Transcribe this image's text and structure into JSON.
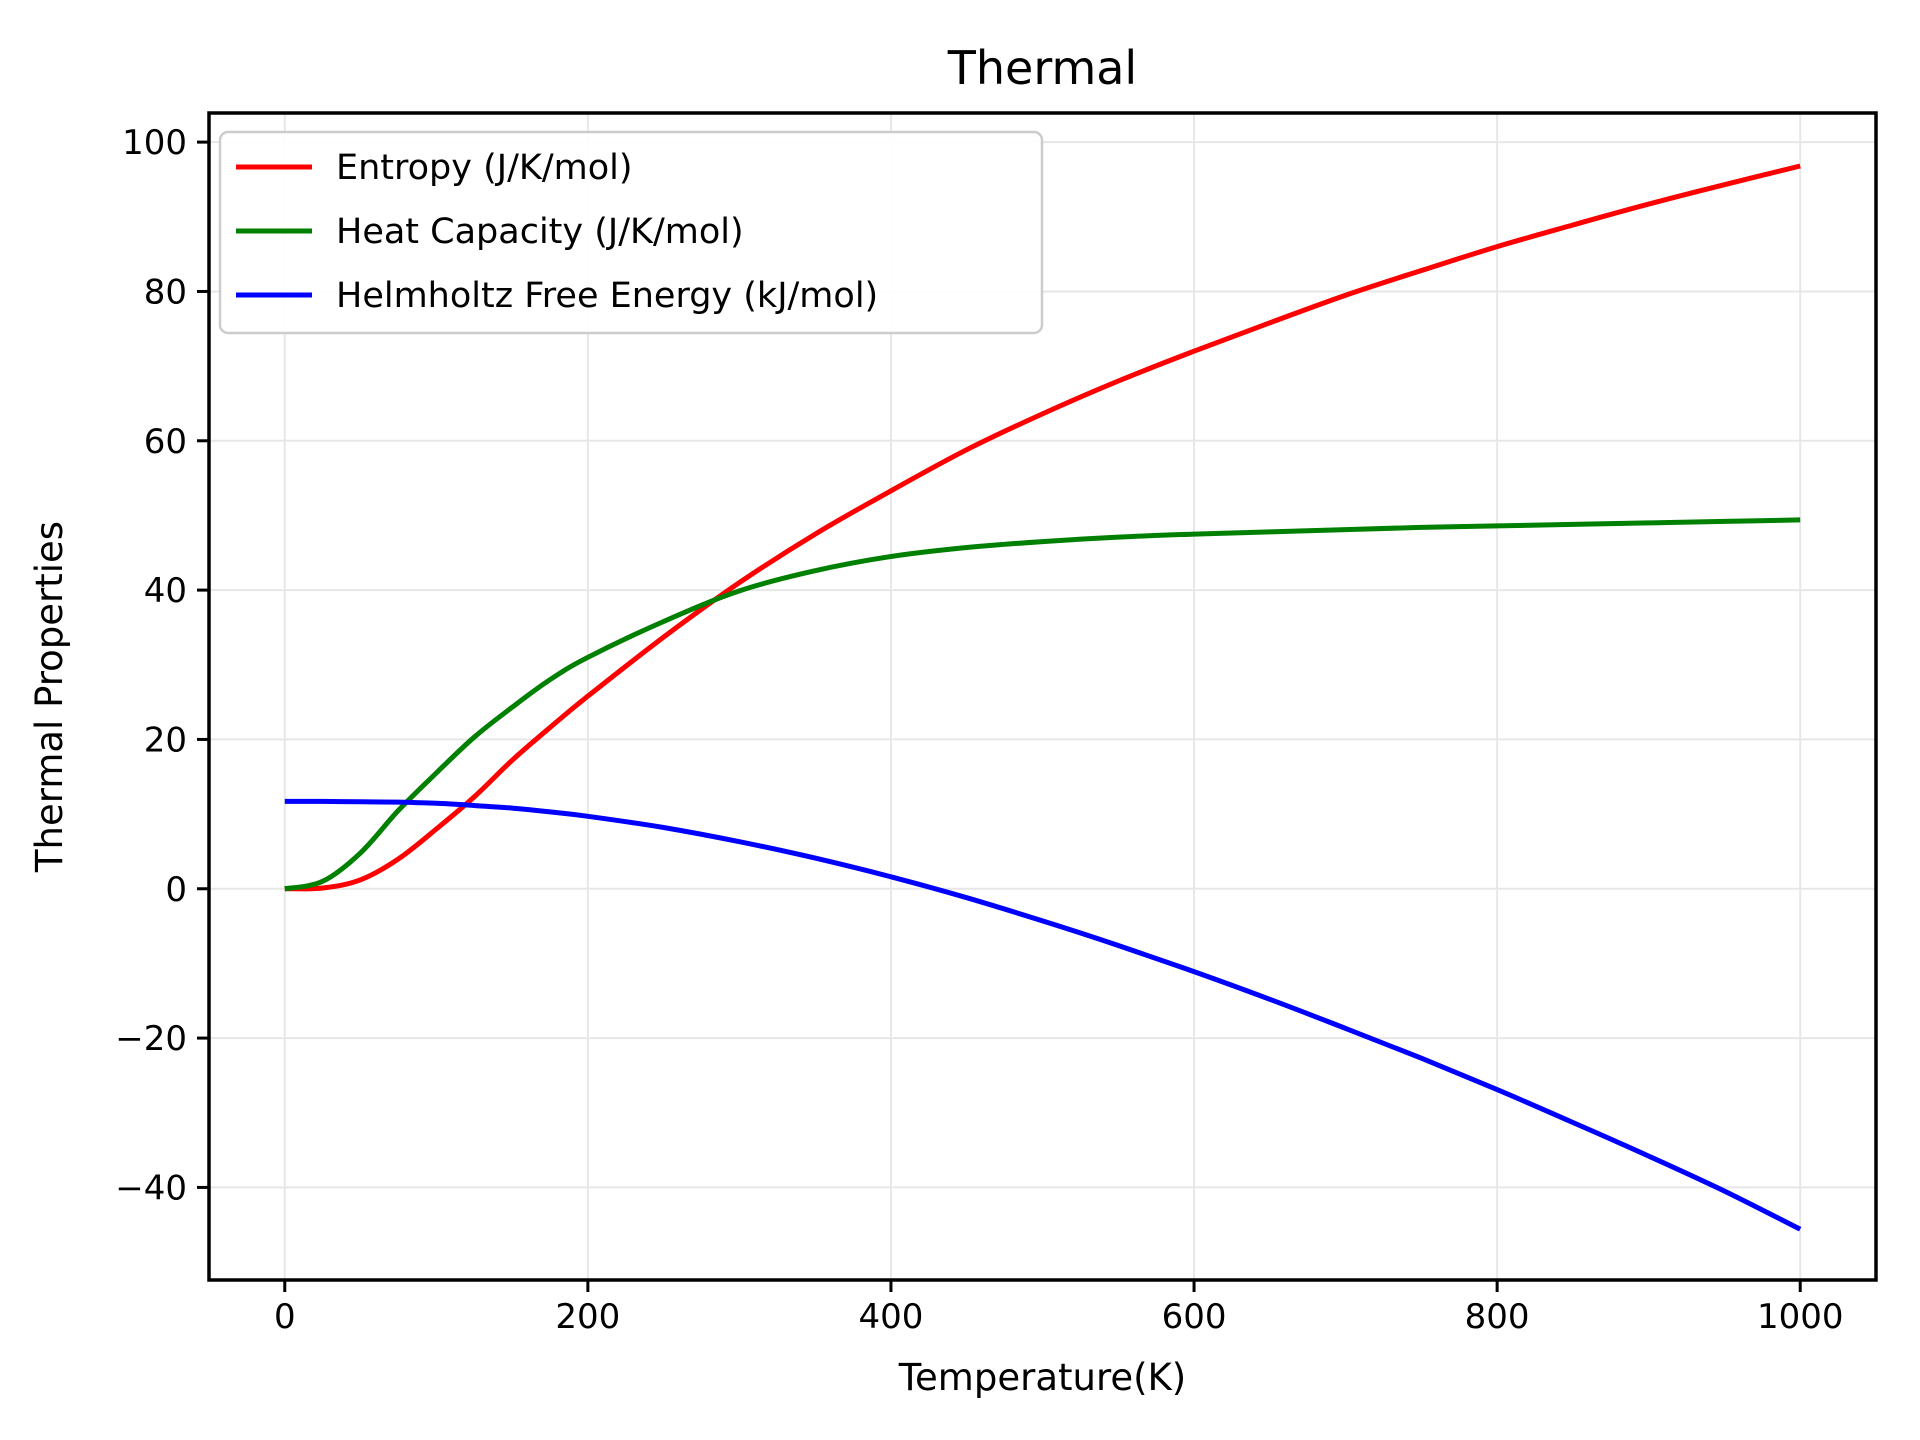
{
  "title": "Thermal",
  "axes": {
    "xlabel": "Temperature(K)",
    "ylabel": "Thermal Properties",
    "xlim": [
      -50,
      1050
    ],
    "ylim": [
      -52.4,
      103.9
    ],
    "xticks": {
      "values": [
        0,
        200,
        400,
        600,
        800,
        1000
      ],
      "labels": [
        "0",
        "200",
        "400",
        "600",
        "800",
        "1000"
      ]
    },
    "yticks": {
      "values": [
        -40,
        -20,
        0,
        20,
        40,
        60,
        80,
        100
      ],
      "labels": [
        "−40",
        "−20",
        "0",
        "20",
        "40",
        "60",
        "80",
        "100"
      ]
    },
    "grid_color": "#e7e7e7",
    "spine_color": "#000000"
  },
  "legend": {
    "position": "upper left",
    "border_color": "#cccccc",
    "entries": [
      {
        "label": "Entropy (J/K/mol)",
        "color": "#ff0000"
      },
      {
        "label": "Heat Capacity (J/K/mol)",
        "color": "#008000"
      },
      {
        "label": "Helmholtz Free Energy (kJ/mol)",
        "color": "#0000ff"
      }
    ]
  },
  "chart_data": {
    "type": "line",
    "title": "Thermal",
    "xlabel": "Temperature(K)",
    "ylabel": "Thermal Properties",
    "xlim": [
      -50,
      1050
    ],
    "ylim": [
      -52.4,
      103.9
    ],
    "grid": true,
    "legend_position": "upper left",
    "x": [
      0,
      25,
      50,
      75,
      100,
      125,
      150,
      175,
      200,
      250,
      300,
      350,
      400,
      450,
      500,
      550,
      600,
      650,
      700,
      750,
      800,
      850,
      900,
      950,
      1000
    ],
    "series": [
      {
        "name": "Entropy (J/K/mol)",
        "color": "#ff0000",
        "values": [
          0,
          0.1,
          1.2,
          4.0,
          8.0,
          12.3,
          17.2,
          21.6,
          25.8,
          33.7,
          41.0,
          47.5,
          53.3,
          58.8,
          63.6,
          68.0,
          72.0,
          75.8,
          79.5,
          82.8,
          86.0,
          88.9,
          91.7,
          94.3,
          96.8
        ]
      },
      {
        "name": "Heat Capacity (J/K/mol)",
        "color": "#008000",
        "values": [
          0,
          1.0,
          4.8,
          10.5,
          15.5,
          20.3,
          24.3,
          28.0,
          31.0,
          35.8,
          39.9,
          42.6,
          44.5,
          45.7,
          46.5,
          47.1,
          47.5,
          47.8,
          48.1,
          48.4,
          48.6,
          48.8,
          49.0,
          49.2,
          49.4
        ]
      },
      {
        "name": "Helmholtz Free Energy (kJ/mol)",
        "color": "#0000ff",
        "values": [
          11.7,
          11.7,
          11.65,
          11.6,
          11.45,
          11.15,
          10.8,
          10.3,
          9.7,
          8.2,
          6.3,
          4.1,
          1.6,
          -1.2,
          -4.3,
          -7.6,
          -11.1,
          -14.8,
          -18.7,
          -22.7,
          -26.9,
          -31.3,
          -35.8,
          -40.5,
          -45.6
        ]
      }
    ]
  }
}
